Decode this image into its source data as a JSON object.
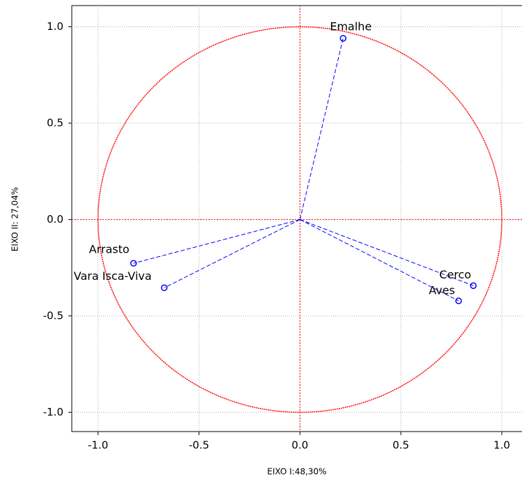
{
  "chart_data": {
    "type": "scatter",
    "x_label": "EIXO I:48,30%",
    "y_label": "EIXO II: 27,04%",
    "labels": [
      "Emalhe",
      "Arrasto",
      "Vara Isca-Viva",
      "Cerco",
      "Aves"
    ],
    "x": [
      0.214,
      -0.824,
      -0.672,
      0.859,
      0.786
    ],
    "y": [
      0.94,
      -0.227,
      -0.354,
      -0.343,
      -0.422
    ],
    "color": "#0000ff",
    "circle_color": "#ff0000",
    "unit_circle": true,
    "grid": true,
    "xlim": [
      -1.13,
      1.1
    ],
    "ylim": [
      -1.1,
      1.11
    ],
    "xticks": [
      {
        "value": -1,
        "label": "-1.0"
      },
      -0.5,
      {
        "value": 0,
        "label": "0.0"
      },
      0.5,
      {
        "value": 1,
        "label": "1.0"
      }
    ],
    "yticks": [
      {
        "value": -1,
        "label": "-1.0"
      },
      -0.5,
      {
        "value": 0,
        "label": "0.0"
      },
      0.5,
      {
        "value": 1,
        "label": "1.0"
      }
    ]
  }
}
